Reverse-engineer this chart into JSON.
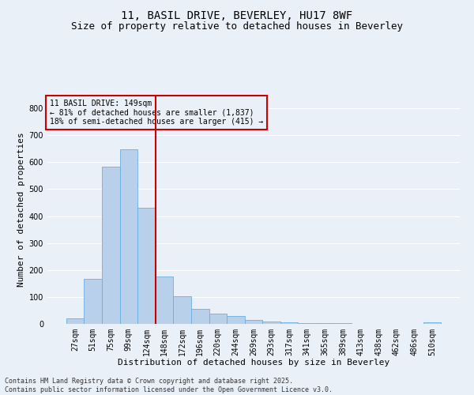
{
  "title_line1": "11, BASIL DRIVE, BEVERLEY, HU17 8WF",
  "title_line2": "Size of property relative to detached houses in Beverley",
  "xlabel": "Distribution of detached houses by size in Beverley",
  "ylabel": "Number of detached properties",
  "categories": [
    "27sqm",
    "51sqm",
    "75sqm",
    "99sqm",
    "124sqm",
    "148sqm",
    "172sqm",
    "196sqm",
    "220sqm",
    "244sqm",
    "269sqm",
    "293sqm",
    "317sqm",
    "341sqm",
    "365sqm",
    "389sqm",
    "413sqm",
    "438sqm",
    "462sqm",
    "486sqm",
    "510sqm"
  ],
  "values": [
    20,
    167,
    582,
    648,
    432,
    175,
    104,
    55,
    38,
    30,
    15,
    10,
    5,
    4,
    3,
    2,
    1,
    1,
    1,
    1,
    5
  ],
  "bar_color": "#b8d0ea",
  "bar_edge_color": "#6aaee0",
  "vline_color": "#cc0000",
  "vline_index": 4.5,
  "annotation_title": "11 BASIL DRIVE: 149sqm",
  "annotation_line1": "← 81% of detached houses are smaller (1,837)",
  "annotation_line2": "18% of semi-detached houses are larger (415) →",
  "annotation_box_color": "#cc0000",
  "annotation_bg_color": "#eaf0f8",
  "ylim": [
    0,
    850
  ],
  "yticks": [
    0,
    100,
    200,
    300,
    400,
    500,
    600,
    700,
    800
  ],
  "background_color": "#eaf0f8",
  "footer_line1": "Contains HM Land Registry data © Crown copyright and database right 2025.",
  "footer_line2": "Contains public sector information licensed under the Open Government Licence v3.0.",
  "grid_color": "#ffffff",
  "title1_fontsize": 10,
  "title2_fontsize": 9,
  "xlabel_fontsize": 8,
  "ylabel_fontsize": 8,
  "annot_fontsize": 7,
  "tick_fontsize": 7,
  "footer_fontsize": 6
}
